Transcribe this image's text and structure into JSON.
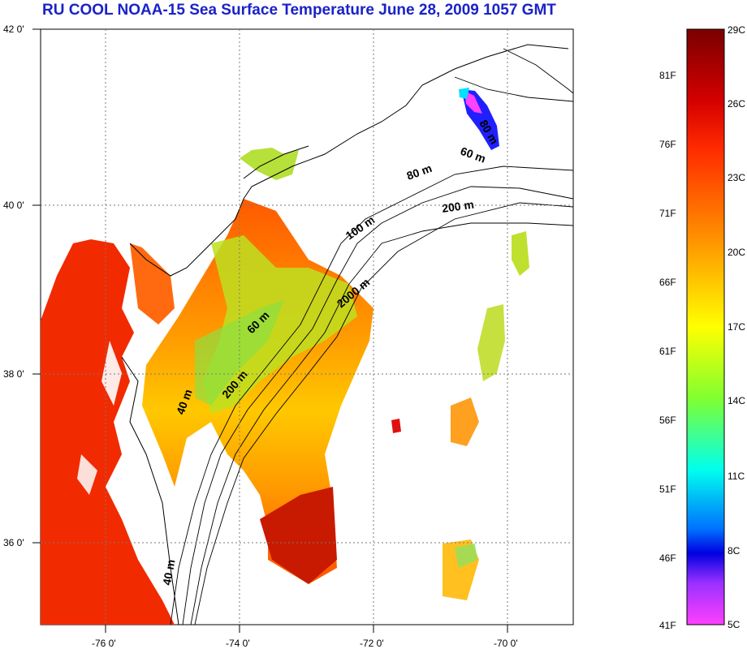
{
  "title": "RU COOL  NOAA-15 Sea Surface Temperature June 28, 2009 1057 GMT",
  "axes": {
    "lon_ticks": [
      "-76 0'",
      "-74 0'",
      "-72 0'",
      "-70 0'"
    ],
    "lat_ticks": [
      "42 0'",
      "40 0'",
      "38 0'",
      "36 0'"
    ]
  },
  "isobaths": [
    "80 m",
    "60 m",
    "80 m",
    "200 m",
    "100 m",
    "2000 m",
    "60 m",
    "200 m",
    "40 m",
    "40 m"
  ],
  "colorbar": {
    "celsius": [
      "29C",
      "26C",
      "23C",
      "20C",
      "17C",
      "14C",
      "11C",
      "8C",
      "5C"
    ],
    "fahrenheit": [
      "81F",
      "76F",
      "71F",
      "66F",
      "61F",
      "56F",
      "51F",
      "46F",
      "41F"
    ],
    "colors": [
      "#7a0000",
      "#ff0000",
      "#ff8c00",
      "#ffe000",
      "#7dff00",
      "#00ffff",
      "#0064ff",
      "#0000ff",
      "#ff33cc"
    ]
  },
  "palette": {
    "title_color": "#1a22c8",
    "land": "#ffffff",
    "grid": "#7a7a7a"
  }
}
